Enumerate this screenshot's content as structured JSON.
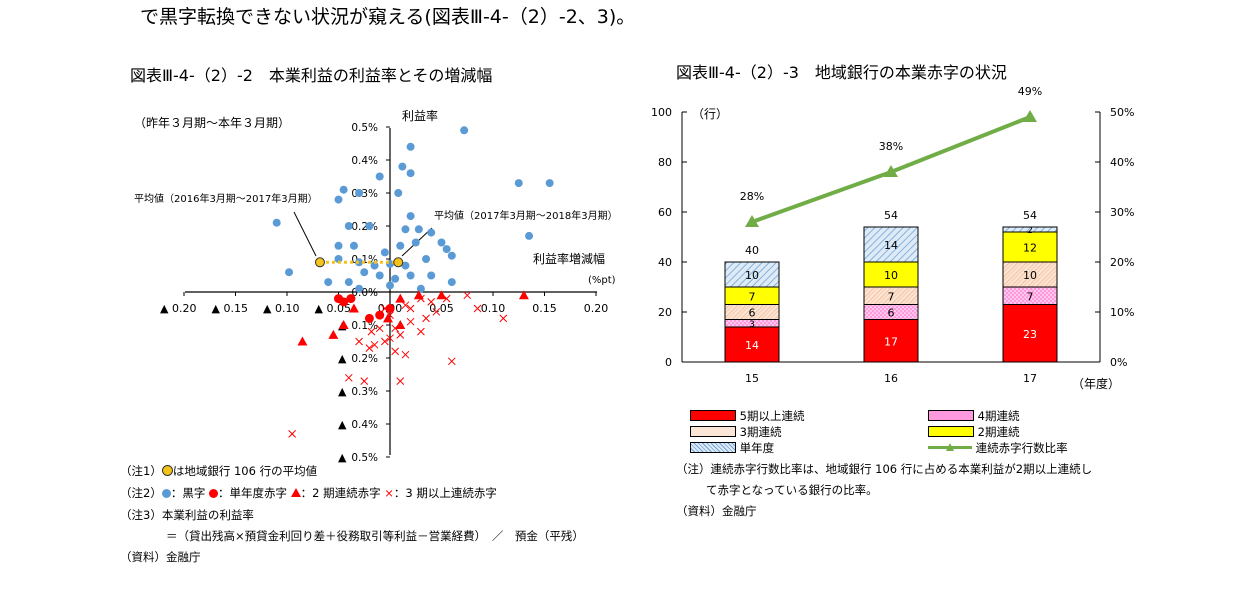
{
  "page": {
    "heading": "で黒字転換できない状況が窺える(図表Ⅲ-4-（2）-2、3)。"
  },
  "left": {
    "title": "図表Ⅲ-4-（2）-2　本業利益の利益率とその増減幅",
    "period": "（昨年３月期～本年３月期）",
    "y_label": "利益率",
    "x_label": "利益率増減幅",
    "x_unit": "(%pt)",
    "avg1_label": "平均値（2016年3月期～2017年3月期）",
    "avg2_label": "平均値（2017年3月期～2018年3月期）",
    "notes": {
      "n1_prefix": "（注1）",
      "n1_text": "は地域銀行 106 行の平均値",
      "n2_prefix": "（注2）",
      "n2_black": "：黒字",
      "n2_single": "：単年度赤字",
      "n2_two": "：2 期連続赤字",
      "n2_three_sym": "×",
      "n2_three": "：3 期以上連続赤字",
      "n3": "（注3）本業利益の利益率",
      "n3_formula": "＝（貸出残高×預貸金利回り差＋役務取引等利益－営業経費）　／　預金（平残）",
      "source": "（資料）金融庁"
    }
  },
  "right": {
    "title": "図表Ⅲ-4-（2）-3　地域銀行の本業赤字の状況",
    "y_left_unit": "（行）",
    "x_unit": "（年度）",
    "legend": {
      "s5": "5期以上連続",
      "s4": "4期連続",
      "s3": "3期連続",
      "s2": "2期連続",
      "s1": "単年度",
      "ratio": "連続赤字行数比率"
    },
    "note_line1": "（注）連続赤字行数比率は、地域銀行 106 行に占める本業利益が2期以上連続し",
    "note_line2": "て赤字となっている銀行の比率。",
    "source": "（資料）金融庁"
  },
  "colors": {
    "black_dot": "#5b9bd5",
    "red": "#ff0000",
    "avg": "#f5c21a",
    "green": "#70ad47",
    "five": "#ff0000",
    "four": "#ff66cc",
    "three": "#f4b183",
    "two": "#ffff00",
    "one": "#9dc3e6"
  },
  "chart_data": [
    {
      "type": "scatter",
      "title": "図表Ⅲ-4-（2）-2　本業利益の利益率とその増減幅",
      "xlabel": "利益率増減幅",
      "ylabel": "利益率",
      "xlim": [
        -0.2,
        0.2
      ],
      "ylim": [
        -0.5,
        0.5
      ],
      "x_ticks": [
        "0.20",
        "0.15",
        "0.10",
        "0.05",
        "0.00",
        "0.05",
        "0.10",
        "0.15",
        "0.20"
      ],
      "y_ticks": [
        "0.5%",
        "0.4%",
        "0.3%",
        "0.2%",
        "0.1%",
        "0.0%",
        "0.1%",
        "0.2%",
        "0.3%",
        "0.4%",
        "0.5%"
      ],
      "averages": [
        {
          "name": "平均値（2016年3月期～2017年3月期）",
          "x": -0.068,
          "y": 0.09
        },
        {
          "name": "平均値（2017年3月期～2018年3月期）",
          "x": 0.008,
          "y": 0.09
        }
      ],
      "series": [
        {
          "name": "黒字",
          "points": [
            [
              0.072,
              0.49
            ],
            [
              0.012,
              0.38
            ],
            [
              0.02,
              0.44
            ],
            [
              -0.01,
              0.35
            ],
            [
              -0.045,
              0.31
            ],
            [
              -0.03,
              0.3
            ],
            [
              -0.05,
              0.28
            ],
            [
              0.008,
              0.3
            ],
            [
              0.125,
              0.33
            ],
            [
              0.155,
              0.33
            ],
            [
              0.135,
              0.17
            ],
            [
              -0.11,
              0.21
            ],
            [
              -0.098,
              0.06
            ],
            [
              -0.04,
              0.2
            ],
            [
              -0.02,
              0.2
            ],
            [
              0.02,
              0.23
            ],
            [
              0.015,
              0.19
            ],
            [
              0.028,
              0.19
            ],
            [
              -0.05,
              0.14
            ],
            [
              -0.035,
              0.14
            ],
            [
              0.01,
              0.14
            ],
            [
              0.025,
              0.15
            ],
            [
              0.05,
              0.15
            ],
            [
              0.055,
              0.13
            ],
            [
              -0.05,
              0.1
            ],
            [
              -0.03,
              0.09
            ],
            [
              -0.015,
              0.08
            ],
            [
              0.0,
              0.085
            ],
            [
              0.015,
              0.08
            ],
            [
              0.035,
              0.1
            ],
            [
              0.06,
              0.11
            ],
            [
              -0.06,
              0.03
            ],
            [
              -0.04,
              0.03
            ],
            [
              -0.025,
              0.06
            ],
            [
              -0.01,
              0.05
            ],
            [
              0.005,
              0.04
            ],
            [
              0.02,
              0.05
            ],
            [
              0.04,
              0.05
            ],
            [
              -0.03,
              0.01
            ],
            [
              0.0,
              0.02
            ],
            [
              0.03,
              0.01
            ],
            [
              0.06,
              0.03
            ],
            [
              0.02,
              0.36
            ],
            [
              -0.005,
              0.12
            ],
            [
              0.04,
              0.18
            ]
          ]
        },
        {
          "name": "単年度赤字",
          "points": [
            [
              -0.05,
              -0.02
            ],
            [
              -0.045,
              -0.03
            ],
            [
              -0.038,
              -0.02
            ],
            [
              0.0,
              -0.05
            ],
            [
              -0.02,
              -0.08
            ],
            [
              -0.01,
              -0.07
            ]
          ]
        },
        {
          "name": "2 期連続赤字",
          "points": [
            [
              -0.085,
              -0.15
            ],
            [
              -0.055,
              -0.13
            ],
            [
              -0.045,
              -0.1
            ],
            [
              -0.035,
              -0.05
            ],
            [
              0.01,
              -0.02
            ],
            [
              0.028,
              -0.01
            ],
            [
              0.05,
              -0.01
            ],
            [
              0.13,
              -0.01
            ],
            [
              -0.002,
              -0.08
            ],
            [
              0.01,
              -0.1
            ]
          ]
        },
        {
          "name": "3 期以上連続赤字",
          "points": [
            [
              -0.095,
              -0.43
            ],
            [
              -0.04,
              -0.26
            ],
            [
              -0.025,
              -0.27
            ],
            [
              0.01,
              -0.27
            ],
            [
              0.06,
              -0.21
            ],
            [
              0.005,
              -0.18
            ],
            [
              0.015,
              -0.19
            ],
            [
              -0.015,
              -0.16
            ],
            [
              -0.02,
              -0.17
            ],
            [
              -0.005,
              -0.15
            ],
            [
              0.0,
              -0.14
            ],
            [
              0.01,
              -0.13
            ],
            [
              -0.01,
              -0.11
            ],
            [
              0.02,
              -0.09
            ],
            [
              0.0,
              -0.07
            ],
            [
              -0.005,
              -0.05
            ],
            [
              0.015,
              -0.04
            ],
            [
              0.03,
              -0.02
            ],
            [
              0.04,
              -0.03
            ],
            [
              0.055,
              -0.02
            ],
            [
              0.075,
              -0.01
            ],
            [
              0.085,
              -0.05
            ],
            [
              0.11,
              -0.08
            ],
            [
              -0.03,
              -0.15
            ],
            [
              0.02,
              -0.05
            ],
            [
              0.035,
              -0.08
            ],
            [
              0.045,
              -0.06
            ],
            [
              0.03,
              -0.12
            ],
            [
              -0.018,
              -0.12
            ],
            [
              0.005,
              -0.11
            ]
          ]
        }
      ]
    },
    {
      "type": "bar",
      "title": "図表Ⅲ-4-（2）-3　地域銀行の本業赤字の状況",
      "categories": [
        "15",
        "16",
        "17"
      ],
      "xlabel": "（年度）",
      "ylim": [
        0,
        100
      ],
      "y2lim": [
        0,
        50
      ],
      "y_ticks": [
        "0",
        "20",
        "40",
        "60",
        "80",
        "100"
      ],
      "y2_ticks": [
        "0%",
        "10%",
        "20%",
        "30%",
        "40%",
        "50%"
      ],
      "series": [
        {
          "name": "5期以上連続",
          "values": [
            14,
            17,
            23
          ]
        },
        {
          "name": "4期連続",
          "values": [
            3,
            6,
            7
          ]
        },
        {
          "name": "3期連続",
          "values": [
            6,
            7,
            10
          ]
        },
        {
          "name": "2期連続",
          "values": [
            7,
            10,
            12
          ]
        },
        {
          "name": "単年度",
          "values": [
            10,
            14,
            2
          ]
        }
      ],
      "totals": [
        40,
        54,
        54
      ],
      "line": {
        "name": "連続赤字行数比率",
        "values": [
          28,
          38,
          49
        ],
        "labels": [
          "28%",
          "38%",
          "49%"
        ]
      }
    }
  ]
}
